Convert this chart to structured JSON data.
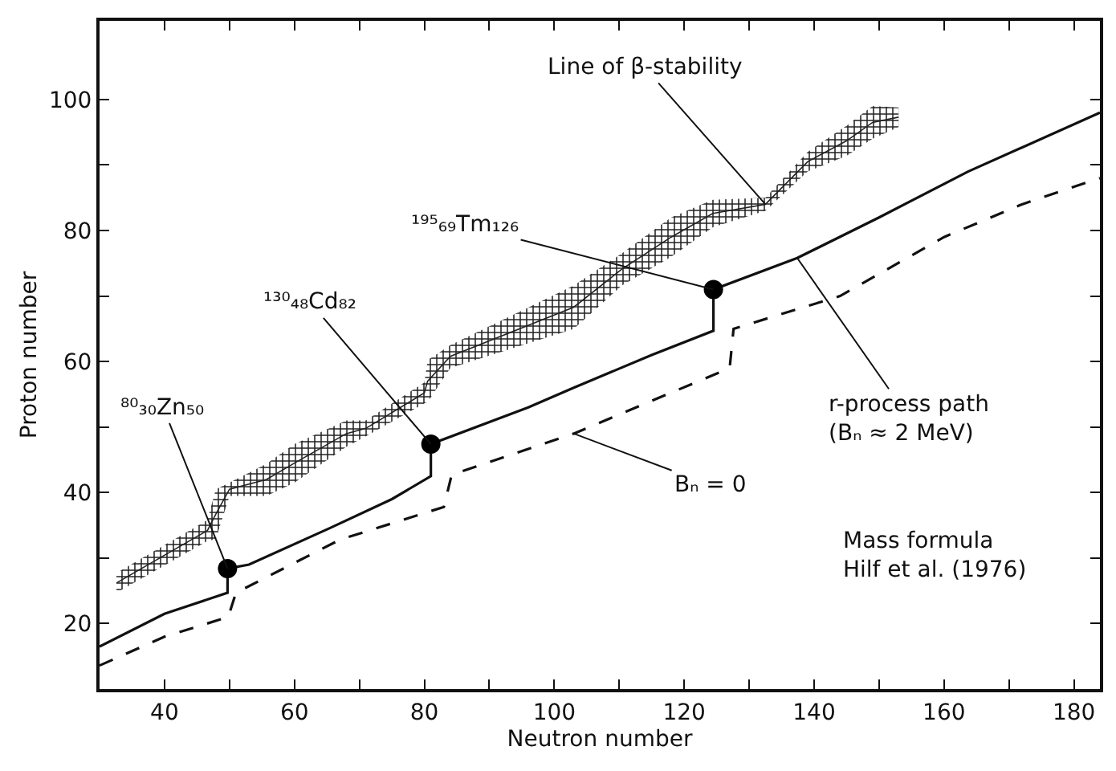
{
  "chart_data": {
    "type": "line",
    "xlabel": "Neutron number",
    "ylabel": "Proton number",
    "xlim": [
      30,
      184
    ],
    "ylim": [
      10,
      112
    ],
    "xticks": [
      40,
      {
        "value": 50,
        "label": null
      },
      60,
      {
        "value": 70,
        "label": null
      },
      80,
      {
        "value": 90,
        "label": null
      },
      100,
      {
        "value": 110,
        "label": null
      },
      120,
      {
        "value": 130,
        "label": null
      },
      140,
      {
        "value": 150,
        "label": null
      },
      160,
      {
        "value": 170,
        "label": null
      },
      180
    ],
    "yticks": [
      20,
      {
        "value": 30,
        "label": null
      },
      40,
      {
        "value": 50,
        "label": null
      },
      60,
      {
        "value": 70,
        "label": null
      },
      80,
      {
        "value": 90,
        "label": null
      },
      100
    ],
    "grid": false,
    "series": [
      {
        "color": "#222222",
        "x": [
          32.6,
          46.6,
          47.9,
          50,
          55.7,
          60,
          68,
          71,
          80,
          80.5,
          84,
          103,
          110.4,
          118,
          124.4,
          132.5,
          139,
          145,
          149,
          153
        ],
        "values": [
          26.2,
          34.2,
          36.7,
          40.5,
          42,
          44.5,
          49,
          49.8,
          55.2,
          57,
          60.8,
          68.3,
          74.1,
          79,
          82.6,
          84,
          90.5,
          93.7,
          96.5,
          97.3
        ],
        "lower": [
          24.7,
          32.6,
          32.9,
          39.5,
          39.5,
          41.5,
          47,
          48.6,
          53.6,
          53.8,
          59,
          65,
          71.6,
          76,
          80.5,
          83,
          89,
          91.4,
          94,
          95.8
        ],
        "upper": [
          27.7,
          35.8,
          40.5,
          41.5,
          44.4,
          47.4,
          51,
          51,
          56.8,
          60.2,
          62.5,
          71.6,
          76.5,
          82,
          84.7,
          85,
          92,
          96,
          99,
          98.8
        ]
      },
      {
        "line_style": "solid",
        "color": "#111111",
        "x": [
          30,
          40,
          49.7,
          49.7,
          53,
          65.5,
          75,
          81,
          81,
          96,
          103,
          115,
          124.5,
          124.5,
          137.4,
          150,
          163.7,
          184
        ],
        "values": [
          16.5,
          21.5,
          24.7,
          28.4,
          29,
          34.6,
          39,
          42.5,
          47.4,
          53,
          56,
          61,
          64.7,
          71,
          75.8,
          82,
          89,
          98
        ]
      },
      {
        "line_style": "dashed",
        "color": "#111111",
        "x": [
          30,
          40,
          49.8,
          51,
          67,
          83,
          84.2,
          103,
          127,
          127.6,
          144,
          160,
          172,
          184
        ],
        "values": [
          13.6,
          18,
          21,
          24.7,
          32.8,
          37.8,
          42.7,
          49,
          59,
          65,
          70,
          79,
          84,
          88
        ]
      },
      {
        "type": "scatter",
        "marker": "circle",
        "color": "#000000",
        "x": [
          49.7,
          81,
          124.5
        ],
        "values": [
          28.4,
          47.4,
          71
        ]
      }
    ],
    "annotations": [
      {
        "text": "⁸⁰₃₀Zn₅₀",
        "x": 49.7,
        "y": 28.4
      },
      {
        "text": "¹³⁰₄₈Cd₈₂",
        "x": 81,
        "y": 47.4
      },
      {
        "text": "¹⁹⁵₆₉Tm₁₂₆",
        "x": 124.5,
        "y": 71
      },
      {
        "text": "Line of β-stability",
        "x": 132.5,
        "y": 84
      },
      {
        "text": "r-process path\n(Bₙ ≈ 2 MeV)",
        "x": 137.4,
        "y": 75.8
      },
      {
        "text": "Bₙ = 0",
        "x": 103,
        "y": 49
      },
      "Mass formula\nHilf et al. (1976)"
    ]
  }
}
